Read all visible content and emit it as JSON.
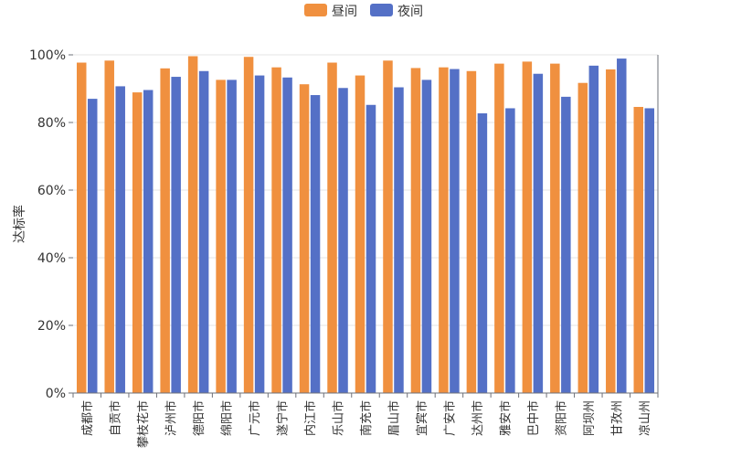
{
  "chart_data": {
    "type": "bar",
    "ylabel": "达标率",
    "ylim": [
      0,
      100
    ],
    "yticks": [
      "0%",
      "20%",
      "40%",
      "60%",
      "80%",
      "100%"
    ],
    "grid": true,
    "legend_position": "top-center",
    "categories": [
      "成都市",
      "自贡市",
      "攀枝花市",
      "泸州市",
      "德阳市",
      "绵阳市",
      "广元市",
      "遂宁市",
      "内江市",
      "乐山市",
      "南充市",
      "眉山市",
      "宜宾市",
      "广安市",
      "达州市",
      "雅安市",
      "巴中市",
      "资阳市",
      "阿坝州",
      "甘孜州",
      "凉山州"
    ],
    "series": [
      {
        "name": "昼间",
        "color": "#f0903f",
        "values": [
          97.7,
          98.3,
          88.9,
          96.0,
          99.6,
          92.6,
          99.4,
          96.3,
          91.3,
          97.7,
          93.9,
          98.3,
          96.1,
          96.3,
          95.2,
          97.4,
          98.0,
          97.4,
          91.7,
          95.7,
          84.6
        ]
      },
      {
        "name": "夜间",
        "color": "#5470c6",
        "values": [
          87.0,
          90.7,
          89.6,
          93.5,
          95.2,
          92.6,
          93.9,
          93.3,
          88.1,
          90.2,
          85.2,
          90.4,
          92.6,
          95.8,
          82.7,
          84.2,
          94.4,
          87.6,
          96.8,
          98.9,
          84.2
        ]
      }
    ]
  }
}
